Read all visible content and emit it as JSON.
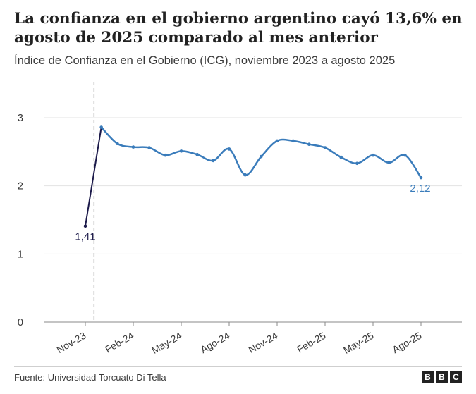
{
  "title": "La confianza en el gobierno argentino cayó 13,6% en agosto de 2025 comparado al mes anterior",
  "subtitle": "Índice de Confianza en el Gobierno (ICG), noviembre 2023 a agosto 2025",
  "source": "Fuente: Universidad Torcuato Di Tella",
  "logo": [
    "B",
    "B",
    "C"
  ],
  "colors": {
    "pre_series": "#1c1a4a",
    "post_series": "#3a7cbb",
    "divider": "#b9b9b9",
    "grid": "#e3e3e3"
  },
  "chart_data": {
    "type": "line",
    "xlabel": "",
    "ylabel": "",
    "ylim": [
      0,
      3
    ],
    "yticks": [
      0,
      1,
      2,
      3
    ],
    "grid": true,
    "legend": "none",
    "x_tick_labels": [
      "Nov-23",
      "Feb-24",
      "May-24",
      "Ago-24",
      "Nov-24",
      "Feb-25",
      "May-25",
      "Ago-25"
    ],
    "x": [
      "Nov-23",
      "Dic-23",
      "Ene-24",
      "Feb-24",
      "Mar-24",
      "Abr-24",
      "May-24",
      "Jun-24",
      "Jul-24",
      "Ago-24",
      "Sep-24",
      "Oct-24",
      "Nov-24",
      "Dic-24",
      "Ene-25",
      "Feb-25",
      "Mar-25",
      "Abr-25",
      "May-25",
      "Jun-25",
      "Jul-25",
      "Ago-25"
    ],
    "values": [
      1.41,
      2.86,
      2.62,
      2.57,
      2.56,
      2.45,
      2.51,
      2.46,
      2.37,
      2.54,
      2.16,
      2.43,
      2.66,
      2.66,
      2.61,
      2.56,
      2.42,
      2.33,
      2.45,
      2.34,
      2.45,
      2.12
    ],
    "annotations": [
      {
        "index": 0,
        "text": "1,41"
      },
      {
        "index": 21,
        "text": "2,12"
      }
    ]
  }
}
